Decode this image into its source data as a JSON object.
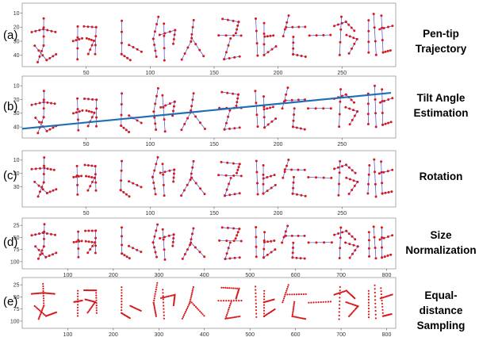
{
  "panels": [
    {
      "label": "(a)",
      "step": [
        "Pen-tip",
        "Trajectory"
      ],
      "x_ticks": [
        50,
        100,
        150,
        200,
        250
      ],
      "y_ticks": [
        10,
        20,
        30,
        40
      ],
      "x_range": [
        0,
        292
      ],
      "y_range": [
        3,
        48
      ],
      "fit_line": false
    },
    {
      "label": "(b)",
      "step": [
        "Tilt Angle",
        "Estimation"
      ],
      "x_ticks": [
        50,
        100,
        150,
        200,
        250
      ],
      "y_ticks": [
        10,
        20,
        30,
        40
      ],
      "x_range": [
        0,
        292
      ],
      "y_range": [
        3,
        48
      ],
      "fit_line": true,
      "fit_line_color": "#1f6fb4"
    },
    {
      "label": "(c)",
      "step": [
        "Rotation"
      ],
      "x_ticks": [
        50,
        100,
        150,
        200,
        250
      ],
      "y_ticks": [
        10,
        20,
        30
      ],
      "x_range": [
        0,
        292
      ],
      "y_range": [
        3,
        45
      ],
      "fit_line": false
    },
    {
      "label": "(d)",
      "step": [
        "Size",
        "Normalization"
      ],
      "x_ticks": [
        100,
        200,
        300,
        400,
        500,
        600,
        700,
        800
      ],
      "y_ticks": [
        25,
        50,
        75,
        100
      ],
      "x_range": [
        0,
        820
      ],
      "y_range": [
        10,
        115
      ],
      "fit_line": false
    },
    {
      "label": "(e)",
      "step": [
        "Equal-distance",
        "Sampling"
      ],
      "x_ticks": [
        100,
        200,
        300,
        400,
        500,
        600,
        700,
        800
      ],
      "y_ticks": [
        25,
        50,
        75,
        100
      ],
      "x_range": [
        0,
        820
      ],
      "y_range": [
        10,
        115
      ],
      "fit_line": false
    }
  ],
  "colors": {
    "points": "#d7191c",
    "strokes": "#4a4ad0",
    "frame": "#888888"
  }
}
